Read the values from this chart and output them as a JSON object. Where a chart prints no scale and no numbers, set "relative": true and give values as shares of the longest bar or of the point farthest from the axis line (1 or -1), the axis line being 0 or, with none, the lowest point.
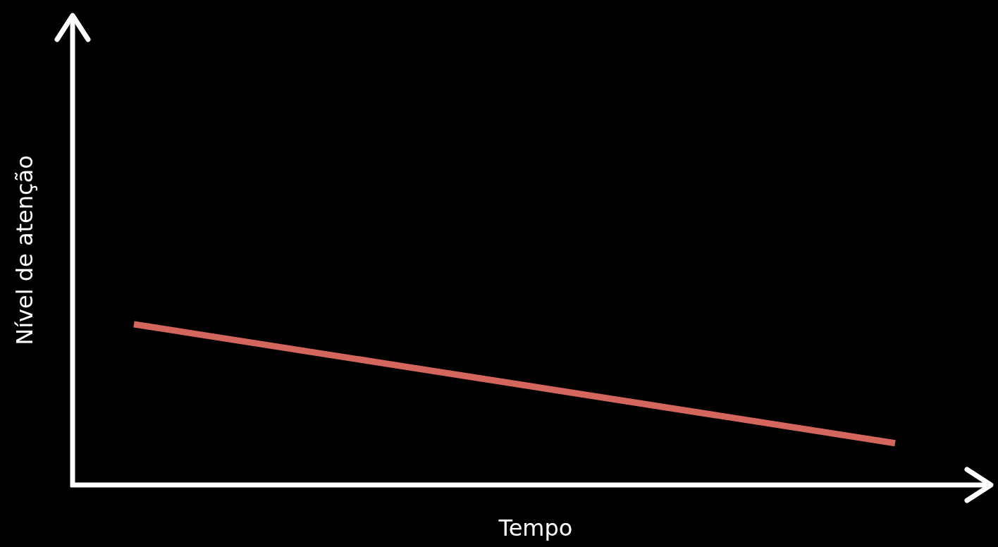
{
  "chart_data": {
    "type": "line",
    "xlabel": "Tempo",
    "ylabel": "Nível de atenção",
    "relative": true,
    "categories": [
      null,
      null
    ],
    "series": [
      {
        "color": "#d4665e",
        "values": [
          1,
          0.26
        ]
      }
    ]
  }
}
